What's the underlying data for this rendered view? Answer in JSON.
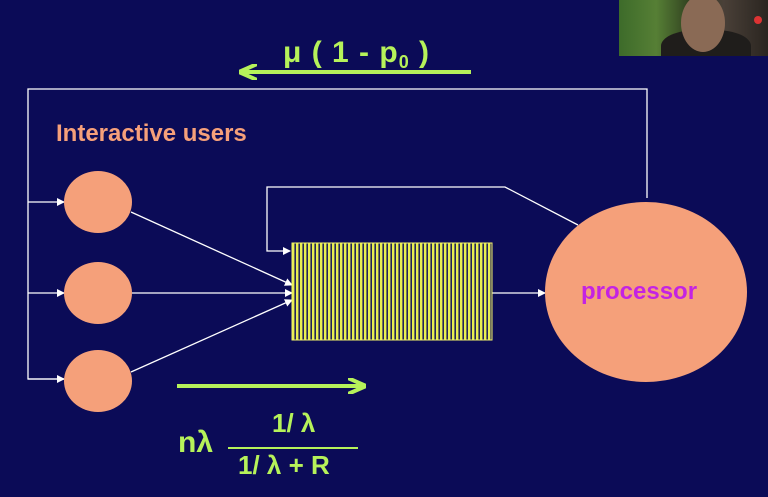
{
  "labels": {
    "top_formula_prefix": "μ ( 1 - p",
    "top_formula_sub": "0",
    "top_formula_suffix": " )",
    "users": "Interactive users",
    "processor": "processor",
    "bottom_prefix": "nλ",
    "bottom_numerator": "1/ λ",
    "bottom_denominator": "1/ λ + R"
  },
  "colors": {
    "background": "#0b0b57",
    "accent_green": "#b6f25a",
    "node_fill": "#f5a07a",
    "queue_fill": "#e9ef50",
    "processor_text": "#c423e3",
    "line": "#ffffff"
  },
  "icons": {
    "user_nodes": [
      "user-node-1",
      "user-node-2",
      "user-node-3"
    ],
    "webcam": "presenter-webcam-thumbnail"
  }
}
